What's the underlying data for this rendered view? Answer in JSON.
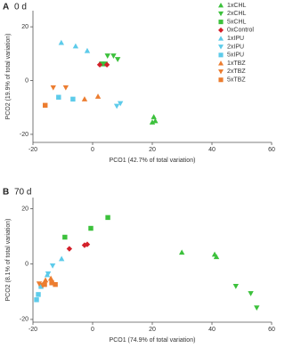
{
  "chart_data": [
    {
      "type": "scatter",
      "panel": "A",
      "title": "0 d",
      "x_label": "PCO1 (42.7% of total variation)",
      "y_label": "PCO2 (19.9% of total variation)",
      "xlim": [
        -20,
        60
      ],
      "xticks": [
        -20,
        0,
        20,
        40,
        60
      ],
      "ylim": [
        -23,
        26
      ],
      "yticks": [
        -20,
        0,
        20
      ],
      "legend": "top-right",
      "series": [
        {
          "name": "1xCHL",
          "color": "#3cc13c",
          "marker": "triangle-up",
          "x": [
            20.5,
            21,
            20
          ],
          "y": [
            -13.5,
            -15,
            -15.5
          ]
        },
        {
          "name": "2xCHL",
          "color": "#3cc13c",
          "marker": "triangle-down",
          "x": [
            5,
            7,
            8.4
          ],
          "y": [
            9.2,
            9.2,
            7.9
          ]
        },
        {
          "name": "5xCHL",
          "color": "#3cc13c",
          "marker": "square",
          "x": [
            3,
            4.2
          ],
          "y": [
            6.2,
            6.2
          ]
        },
        {
          "name": "0xControl",
          "color": "#d3202a",
          "marker": "diamond",
          "x": [
            2.4,
            4.8
          ],
          "y": [
            5.9,
            5.9
          ]
        },
        {
          "name": "1xIPU",
          "color": "#5dcbea",
          "marker": "triangle-up",
          "x": [
            -10.5,
            -5.7,
            -1.8
          ],
          "y": [
            14.1,
            12.8,
            11.1
          ]
        },
        {
          "name": "2xIPU",
          "color": "#5dcbea",
          "marker": "triangle-down",
          "x": [
            8.1,
            9.3
          ],
          "y": [
            -9.5,
            -8.5
          ]
        },
        {
          "name": "5xIPU",
          "color": "#5dcbea",
          "marker": "square",
          "x": [
            -11.4,
            -6.6
          ],
          "y": [
            -6.2,
            -6.9
          ]
        },
        {
          "name": "1xTBZ",
          "color": "#ec7d30",
          "marker": "triangle-up",
          "x": [
            -2.7,
            1.8
          ],
          "y": [
            -6.9,
            -5.9
          ]
        },
        {
          "name": "2xTBZ",
          "color": "#ec7d30",
          "marker": "triangle-down",
          "x": [
            -13.2,
            -9
          ],
          "y": [
            -2.6,
            -2.6
          ]
        },
        {
          "name": "5xTBZ",
          "color": "#ec7d30",
          "marker": "square",
          "x": [
            -15.9
          ],
          "y": [
            -9.2
          ]
        }
      ]
    },
    {
      "type": "scatter",
      "panel": "B",
      "title": "70 d",
      "x_label": "PCO1 (74.9% of total variation)",
      "y_label": "PCO2 (8.1% of total variation)",
      "xlim": [
        -20,
        60
      ],
      "xticks": [
        -20,
        0,
        20,
        40,
        60
      ],
      "ylim": [
        -21,
        24
      ],
      "yticks": [
        -20,
        0,
        20
      ],
      "series": [
        {
          "color": "#3cc13c",
          "marker": "triangle-up",
          "x": [
            29.9,
            40.9,
            41.5
          ],
          "y": [
            4.2,
            3.5,
            2.6
          ]
        },
        {
          "color": "#3cc13c",
          "marker": "triangle-down",
          "x": [
            48,
            53,
            55
          ],
          "y": [
            -8,
            -10.6,
            -15.8
          ]
        },
        {
          "color": "#3cc13c",
          "marker": "square",
          "x": [
            -0.6,
            5.1,
            -9.3
          ],
          "y": [
            12.9,
            16.8,
            9.7
          ]
        },
        {
          "color": "#d3202a",
          "marker": "diamond",
          "x": [
            -7.8,
            -2.7,
            -1.8
          ],
          "y": [
            5.5,
            6.8,
            7.1
          ]
        },
        {
          "color": "#5dcbea",
          "marker": "triangle-up",
          "x": [
            -10.4,
            -15.2
          ],
          "y": [
            1.9,
            -3.9
          ]
        },
        {
          "color": "#5dcbea",
          "marker": "triangle-down",
          "x": [
            -13.4,
            -14.9
          ],
          "y": [
            -0.6,
            -3.5
          ]
        },
        {
          "color": "#5dcbea",
          "marker": "square",
          "x": [
            -18.8,
            -18.2,
            -17.3
          ],
          "y": [
            -12.9,
            -11,
            -8.1
          ]
        },
        {
          "color": "#ec7d30",
          "marker": "triangle-up",
          "x": [
            -15.8,
            -14
          ],
          "y": [
            -5.8,
            -5.2
          ]
        },
        {
          "color": "#ec7d30",
          "marker": "triangle-down",
          "x": [
            -17.9,
            -16.7
          ],
          "y": [
            -7.1,
            -7.7
          ]
        },
        {
          "color": "#ec7d30",
          "marker": "square",
          "x": [
            -13.7,
            -12.5,
            -16.1
          ],
          "y": [
            -6.8,
            -7.4,
            -7.4
          ]
        }
      ]
    }
  ]
}
